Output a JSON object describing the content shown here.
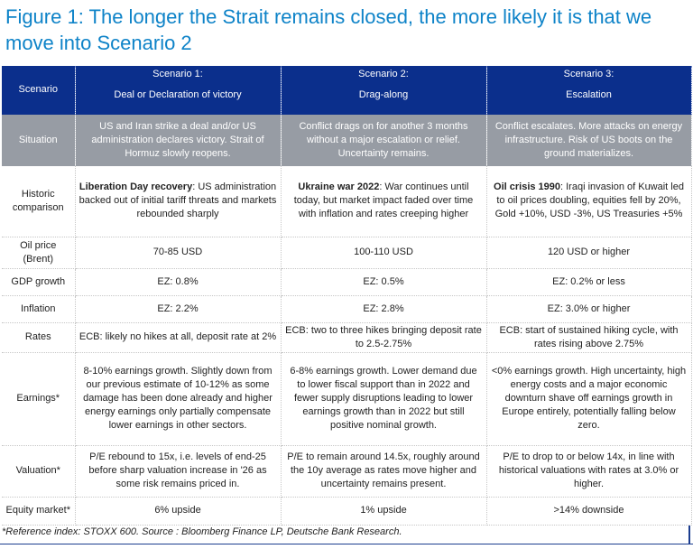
{
  "title": "Figure 1: The longer the Strait remains closed, the more likely it is that we move into Scenario 2",
  "table": {
    "header": {
      "label": "Scenario",
      "scenarios": [
        {
          "name": "Scenario 1:",
          "desc": "Deal or Declaration of victory"
        },
        {
          "name": "Scenario 2:",
          "desc": "Drag-along"
        },
        {
          "name": "Scenario 3:",
          "desc": "Escalation"
        }
      ]
    },
    "situation": {
      "label": "Situation",
      "cells": [
        "US and Iran strike a deal and/or US administration declares victory. Strait of Hormuz slowly reopens.",
        "Conflict drags on for another 3 months without a major escalation or relief. Uncertainty remains.",
        "Conflict escalates. More attacks on energy infrastructure. Risk of US boots on the ground materializes."
      ]
    },
    "historic": {
      "label": "Historic comparison",
      "cells": [
        {
          "bold": "Liberation Day recovery",
          "rest": ": US administration backed out of initial tariff threats and markets rebounded sharply"
        },
        {
          "bold": "Ukraine war 2022",
          "rest": ": War continues until today, but market impact faded over time with inflation and rates creeping higher"
        },
        {
          "bold": "Oil crisis 1990",
          "rest": ": Iraqi invasion of Kuwait led to oil prices doubling, equities fell by 20%, Gold +10%, USD -3%, US Treasuries +5%"
        }
      ]
    },
    "oil": {
      "label": "Oil price (Brent)",
      "cells": [
        "70-85 USD",
        "100-110 USD",
        "120 USD or higher"
      ]
    },
    "gdp": {
      "label": "GDP growth",
      "cells": [
        "EZ: 0.8%",
        "EZ: 0.5%",
        "EZ: 0.2% or less"
      ]
    },
    "inflation": {
      "label": "Inflation",
      "cells": [
        "EZ: 2.2%",
        "EZ: 2.8%",
        "EZ: 3.0% or higher"
      ]
    },
    "rates": {
      "label": "Rates",
      "cells": [
        "ECB: likely no hikes at all, deposit rate at 2%",
        "ECB: two to three hikes bringing deposit rate to 2.5-2.75%",
        "ECB: start of sustained hiking cycle, with rates rising above 2.75%"
      ]
    },
    "earnings": {
      "label": "Earnings*",
      "cells": [
        "8-10% earnings growth. Slightly down from our previous estimate of 10-12% as some damage has been done already and higher energy earnings only partially compensate lower earnings in other sectors.",
        "6-8% earnings growth. Lower demand due to lower fiscal support than in 2022 and fewer supply disruptions leading to lower earnings growth than in 2022 but still positive nominal growth.",
        "<0% earnings growth. High uncertainty, high energy costs and a major economic downturn shave off earnings growth in Europe entirely, potentially falling below zero."
      ]
    },
    "valuation": {
      "label": "Valuation*",
      "cells": [
        "P/E rebound to 15x, i.e. levels of end-25 before sharp valuation increase in '26 as some risk remains priced in.",
        "P/E to remain around 14.5x, roughly around the 10y average as rates move higher and uncertainty remains present.",
        "P/E to drop to or below 14x, in line with historical valuations with rates at 3.0% or higher."
      ]
    },
    "equity": {
      "label": "Equity market*",
      "cells": [
        "6% upside",
        "1% upside",
        ">14% downside"
      ]
    }
  },
  "footnote": "*Reference index: STOXX 600. Source : Bloomberg Finance LP, Deutsche Bank Research.",
  "colors": {
    "title": "#0e83c8",
    "header_bg": "#0b2f8c",
    "situation_bg": "#979ca4",
    "rule": "#1b3d8f"
  }
}
